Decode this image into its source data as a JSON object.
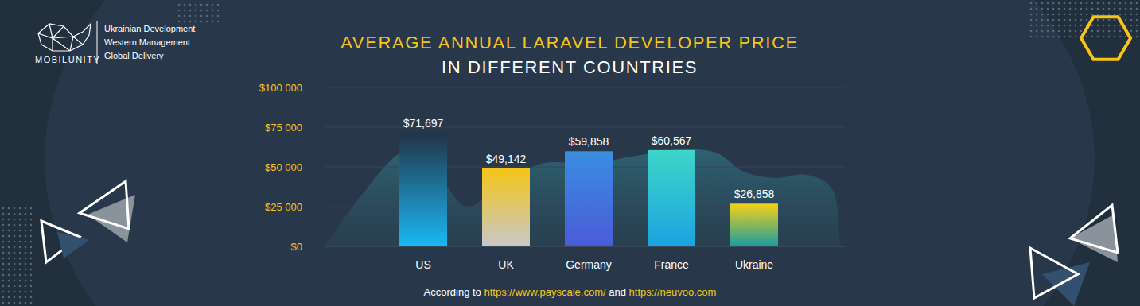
{
  "brand": {
    "name": "MOBILUNITY",
    "taglines": [
      "Ukrainian Development",
      "Western Management",
      "Global Delivery"
    ]
  },
  "chart_data": {
    "type": "bar",
    "title": "AVERAGE ANNUAL LARAVEL DEVELOPER PRICE",
    "subtitle": "IN DIFFERENT COUNTRIES",
    "categories": [
      "US",
      "UK",
      "Germany",
      "France",
      "Ukraine"
    ],
    "values": [
      71697,
      49142,
      59858,
      60567,
      26858
    ],
    "value_labels": [
      "$71,697",
      "$49,142",
      "$59,858",
      "$60,567",
      "$26,858"
    ],
    "colors": [
      "#1ab8f5",
      "#f5c518",
      "#3a8ee0",
      "#3dd6c8",
      "#f5d018"
    ],
    "ylim": [
      0,
      100000
    ],
    "yticks": [
      {
        "value": 0,
        "label": "$0"
      },
      {
        "value": 25000,
        "label": "$25 000"
      },
      {
        "value": 50000,
        "label": "$50 000"
      },
      {
        "value": 75000,
        "label": "$75 000"
      },
      {
        "value": 100000,
        "label": "$100 000"
      }
    ],
    "grid": true,
    "data_labels": true
  },
  "source": {
    "prefix": "According to",
    "link1": "https://www.payscale.com/",
    "joiner": "and",
    "link2": "https://neuvoo.com"
  }
}
